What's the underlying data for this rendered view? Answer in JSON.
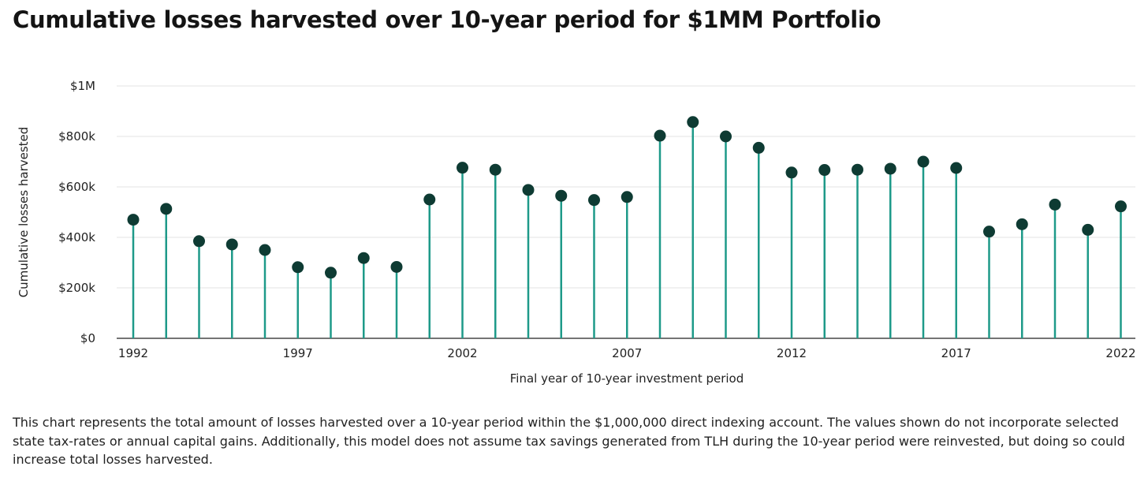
{
  "title": "Cumulative losses harvested over 10-year period for $1MM Portfolio",
  "caption": "This chart represents the total amount of losses harvested over a 10-year period within the $1,000,000 direct indexing account. The values shown do not incorporate selected state tax-rates or annual capital gains. Additionally, this model does not assume tax savings generated from TLH during the 10-year period were reinvested, but doing so could increase total losses harvested.",
  "colors": {
    "stem": "#1e9a89",
    "dot": "#0e3b33",
    "grid": "#e3e3e3",
    "axis": "#222222"
  },
  "chart_data": {
    "type": "lollipop",
    "xlabel": "Final year of 10-year investment period",
    "ylabel": "Cumulative losses harvested",
    "ylim": [
      0,
      1000000
    ],
    "yticks": [
      0,
      200000,
      400000,
      600000,
      800000,
      1000000
    ],
    "ytick_labels": [
      "$0",
      "$200k",
      "$400k",
      "$600k",
      "$800k",
      "$1M"
    ],
    "xtick_labels": [
      "1992",
      "1997",
      "2002",
      "2007",
      "2012",
      "2017",
      "2022"
    ],
    "grid": true,
    "x": [
      1992,
      1993,
      1994,
      1995,
      1996,
      1997,
      1998,
      1999,
      2000,
      2001,
      2002,
      2003,
      2004,
      2005,
      2006,
      2007,
      2008,
      2009,
      2010,
      2011,
      2012,
      2013,
      2014,
      2015,
      2016,
      2017,
      2018,
      2019,
      2020,
      2021,
      2022
    ],
    "values": [
      470000,
      513000,
      385000,
      372000,
      350000,
      282000,
      260000,
      318000,
      283000,
      550000,
      676000,
      668000,
      588000,
      565000,
      548000,
      560000,
      803000,
      857000,
      800000,
      755000,
      657000,
      667000,
      668000,
      672000,
      700000,
      675000,
      423000,
      452000,
      530000,
      430000,
      523000
    ]
  }
}
